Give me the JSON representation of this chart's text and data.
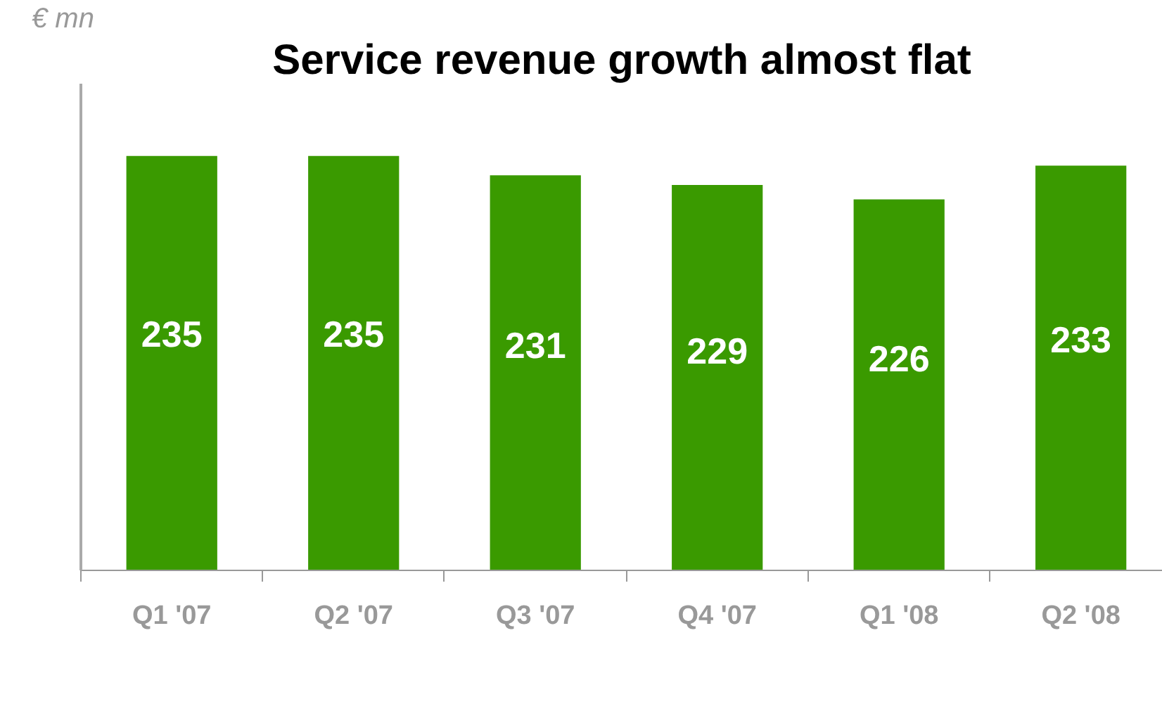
{
  "chart_data": {
    "type": "bar",
    "title": "Service revenue growth almost flat",
    "ylabel": "€ mn",
    "categories": [
      "Q1 '07",
      "Q2 '07",
      "Q3 '07",
      "Q4 '07",
      "Q1 '08",
      "Q2 '08"
    ],
    "values": [
      235,
      235,
      231,
      229,
      226,
      233
    ],
    "color": "#3a9a00",
    "data_labels": true,
    "ylim": [
      149,
      250
    ],
    "tick_labels": "x",
    "grid": false
  }
}
